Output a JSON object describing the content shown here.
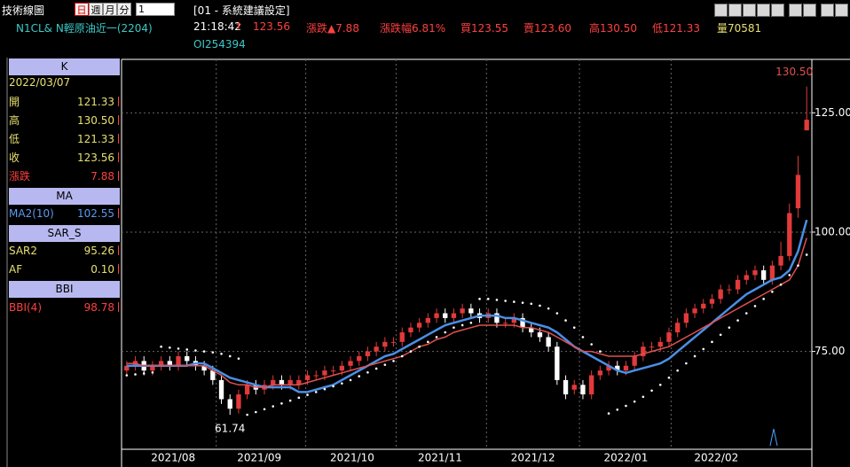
{
  "toolbar": {
    "title": "技術線圖",
    "periods": [
      "日",
      "週",
      "月",
      "分"
    ],
    "count": "1",
    "setting": "[01 - 系統建議設定]"
  },
  "quote": {
    "symbol": "N1CL& N輕原油近一(2204)",
    "time": "21:18:42",
    "arrow": "↑",
    "last": "123.56",
    "change": "漲跌▲7.88",
    "change_pct": "漲跌幅6.81%",
    "bid": "買123.55",
    "ask": "賣123.60",
    "high": "高130.50",
    "low": "低121.33",
    "volume": "量70581",
    "oi": "OI254394"
  },
  "panel": [
    {
      "header": "K",
      "rows": [
        {
          "label": "2022/03/07",
          "color": "#e8e070"
        },
        {
          "label": "開",
          "value": "121.33",
          "color": "#e8e070"
        },
        {
          "label": "高",
          "value": "130.50",
          "color": "#e8e070"
        },
        {
          "label": "低",
          "value": "121.33",
          "color": "#e8e070"
        },
        {
          "label": "收",
          "value": "123.56",
          "color": "#e8e070"
        },
        {
          "label": "漲跌",
          "value": "7.88",
          "color": "#ff4040"
        }
      ]
    },
    {
      "header": "MA",
      "rows": [
        {
          "label": "MA2(10)",
          "value": "102.55",
          "color": "#5a9af0"
        }
      ]
    },
    {
      "header": "SAR_S",
      "rows": [
        {
          "label": "SAR2",
          "value": "95.26",
          "color": "#e8e070"
        },
        {
          "label": "AF",
          "value": "0.10",
          "color": "#e8e070"
        }
      ]
    },
    {
      "header": "BBI",
      "rows": [
        {
          "label": "BBI(4)",
          "value": "98.78",
          "color": "#ff4040"
        }
      ]
    }
  ],
  "chart_data": {
    "type": "candlestick",
    "open": [
      71,
      72,
      73,
      71,
      72,
      73,
      72,
      74,
      73,
      72,
      71,
      69,
      65,
      63,
      66,
      68,
      67,
      68,
      69,
      68,
      68,
      69,
      70,
      70,
      71,
      71,
      72,
      73,
      74,
      75,
      76,
      77,
      77,
      79,
      80,
      81,
      82,
      83,
      82,
      83,
      84,
      83,
      82,
      83,
      81,
      81,
      82,
      80,
      79,
      78,
      76,
      69,
      67,
      68,
      66,
      70,
      71,
      72,
      71,
      72,
      74,
      76,
      76,
      77,
      79,
      81,
      83,
      84,
      85,
      86,
      88,
      88,
      90,
      91,
      92,
      90,
      93,
      95,
      105,
      121.33
    ],
    "high": [
      73,
      74,
      74,
      73,
      74,
      74,
      75,
      75,
      74,
      73,
      72,
      70,
      66,
      67,
      69,
      69,
      69,
      70,
      70,
      70,
      70,
      71,
      71,
      72,
      72,
      73,
      74,
      75,
      76,
      77,
      78,
      78,
      80,
      81,
      82,
      83,
      84,
      84,
      84,
      85,
      85,
      84,
      84,
      84,
      82,
      83,
      83,
      81,
      80,
      79,
      77,
      70,
      69,
      69,
      71,
      72,
      73,
      73,
      73,
      75,
      77,
      77,
      78,
      80,
      82,
      84,
      85,
      86,
      87,
      89,
      89,
      91,
      92,
      93,
      93,
      94,
      98,
      106,
      116,
      130.5
    ],
    "low": [
      70,
      71,
      70,
      70,
      71,
      71,
      71,
      72,
      71,
      70,
      68,
      64,
      61.74,
      62,
      65,
      66,
      66,
      67,
      67,
      67,
      67,
      68,
      69,
      69,
      70,
      70,
      71,
      72,
      73,
      74,
      75,
      76,
      76,
      78,
      79,
      80,
      81,
      81,
      81,
      82,
      82,
      81,
      81,
      80,
      80,
      80,
      79,
      78,
      77,
      75,
      68,
      65,
      66,
      65,
      65,
      69,
      70,
      70,
      70,
      71,
      73,
      75,
      75,
      76,
      78,
      80,
      82,
      83,
      84,
      85,
      87,
      87,
      89,
      90,
      89,
      89,
      92,
      94,
      103,
      121.33
    ],
    "close": [
      72,
      73,
      71,
      72,
      73,
      72,
      74,
      73,
      72,
      71,
      69,
      65,
      63,
      66,
      68,
      67,
      68,
      69,
      68,
      69,
      69,
      70,
      70,
      71,
      71,
      72,
      73,
      74,
      75,
      76,
      77,
      77,
      79,
      80,
      81,
      82,
      83,
      82,
      83,
      84,
      83,
      82,
      83,
      81,
      81,
      82,
      80,
      79,
      78,
      76,
      69,
      66,
      68,
      66,
      70,
      71,
      72,
      71,
      72,
      74,
      76,
      76,
      77,
      79,
      81,
      83,
      84,
      85,
      86,
      88,
      88,
      90,
      91,
      92,
      90,
      93,
      95,
      104,
      112,
      123.56
    ],
    "up_color": "#e23a3a",
    "down_color": "#ffffff",
    "series": [
      {
        "style": "line",
        "color": "#4a8fe6",
        "values": [
          72,
          72,
          72,
          72,
          72,
          72,
          72,
          72,
          72.5,
          72.5,
          71.5,
          70.5,
          69.5,
          69,
          68.5,
          68,
          67.5,
          67.5,
          67.5,
          67.5,
          66.5,
          66.5,
          67,
          67.5,
          68,
          69,
          70,
          71,
          72,
          73,
          74,
          74.5,
          75.5,
          76.5,
          77.5,
          78.5,
          79.5,
          80.5,
          81,
          81.5,
          82,
          82.5,
          82.5,
          82.5,
          82,
          82,
          81.5,
          81,
          80.5,
          80,
          79,
          77.5,
          76,
          75,
          74,
          73,
          72,
          71,
          70.5,
          71,
          71.5,
          72,
          72.5,
          73.5,
          75,
          76.5,
          78,
          79.5,
          81,
          82.5,
          84,
          85.5,
          87,
          88,
          89,
          90,
          90.5,
          92,
          96,
          102.55
        ]
      },
      {
        "style": "line",
        "color": "#e05050",
        "values": [
          72.5,
          72.5,
          72,
          72,
          72,
          72,
          72,
          72,
          72,
          72,
          71,
          70,
          68.5,
          68,
          68,
          67.5,
          67.5,
          68,
          68,
          68,
          68,
          68.5,
          69,
          69.5,
          70,
          70.5,
          71,
          71.5,
          72,
          72.5,
          73,
          73.5,
          74,
          75,
          76,
          76.5,
          77.5,
          78,
          79,
          79.5,
          80,
          80.5,
          80.5,
          80.5,
          80.5,
          80.5,
          80,
          80,
          79.5,
          79,
          78,
          77,
          76,
          75,
          75,
          74.5,
          74,
          74,
          74,
          74,
          74.5,
          75,
          75.5,
          76,
          77,
          78,
          79,
          80,
          81,
          82,
          83,
          84,
          85,
          86,
          87,
          88,
          89,
          90,
          93,
          98.78
        ]
      },
      {
        "style": "dots",
        "color": "#ffffff",
        "values": [
          70,
          70.2,
          70.4,
          70.6,
          76,
          75.8,
          75.6,
          75.4,
          75.2,
          75,
          74.8,
          74.5,
          74,
          73.5,
          61.74,
          62.3,
          62.9,
          63.5,
          64.1,
          64.7,
          65.3,
          65.9,
          66.5,
          67.1,
          67.7,
          68.3,
          69,
          69.8,
          70.6,
          71.4,
          72.2,
          73,
          74,
          75,
          76,
          77,
          78,
          79,
          80,
          80.5,
          81,
          86,
          86,
          85.8,
          85.6,
          85.4,
          85.2,
          85,
          84.6,
          84,
          83,
          81.5,
          80,
          78,
          76.5,
          75,
          62,
          62.8,
          63.6,
          64.5,
          65.5,
          66.8,
          68,
          69.5,
          71,
          72.5,
          74,
          75.5,
          77,
          78.5,
          80,
          81.5,
          83,
          84.5,
          86,
          87.5,
          89,
          91,
          93,
          95.26
        ]
      }
    ],
    "xlim": [
      -0.6,
      79.6
    ],
    "ylim": [
      54.5,
      136.2
    ],
    "yticks": [
      {
        "value": 75,
        "label": "75.00"
      },
      {
        "value": 100,
        "label": "100.00"
      },
      {
        "value": 125,
        "label": "125.00"
      }
    ],
    "xticks": [
      {
        "value": 5.4,
        "label": "2021/08"
      },
      {
        "value": 15.4,
        "label": "2021/09"
      },
      {
        "value": 26.2,
        "label": "2021/10"
      },
      {
        "value": 36.4,
        "label": "2021/11"
      },
      {
        "value": 47.2,
        "label": "2021/12"
      },
      {
        "value": 58,
        "label": "2022/01"
      },
      {
        "value": 68.5,
        "label": "2022/02"
      }
    ],
    "annotations": [
      {
        "text": "130.50",
        "color": "#e05050"
      },
      {
        "text": "61.74",
        "color": "#ffffff"
      }
    ],
    "grid": true
  }
}
